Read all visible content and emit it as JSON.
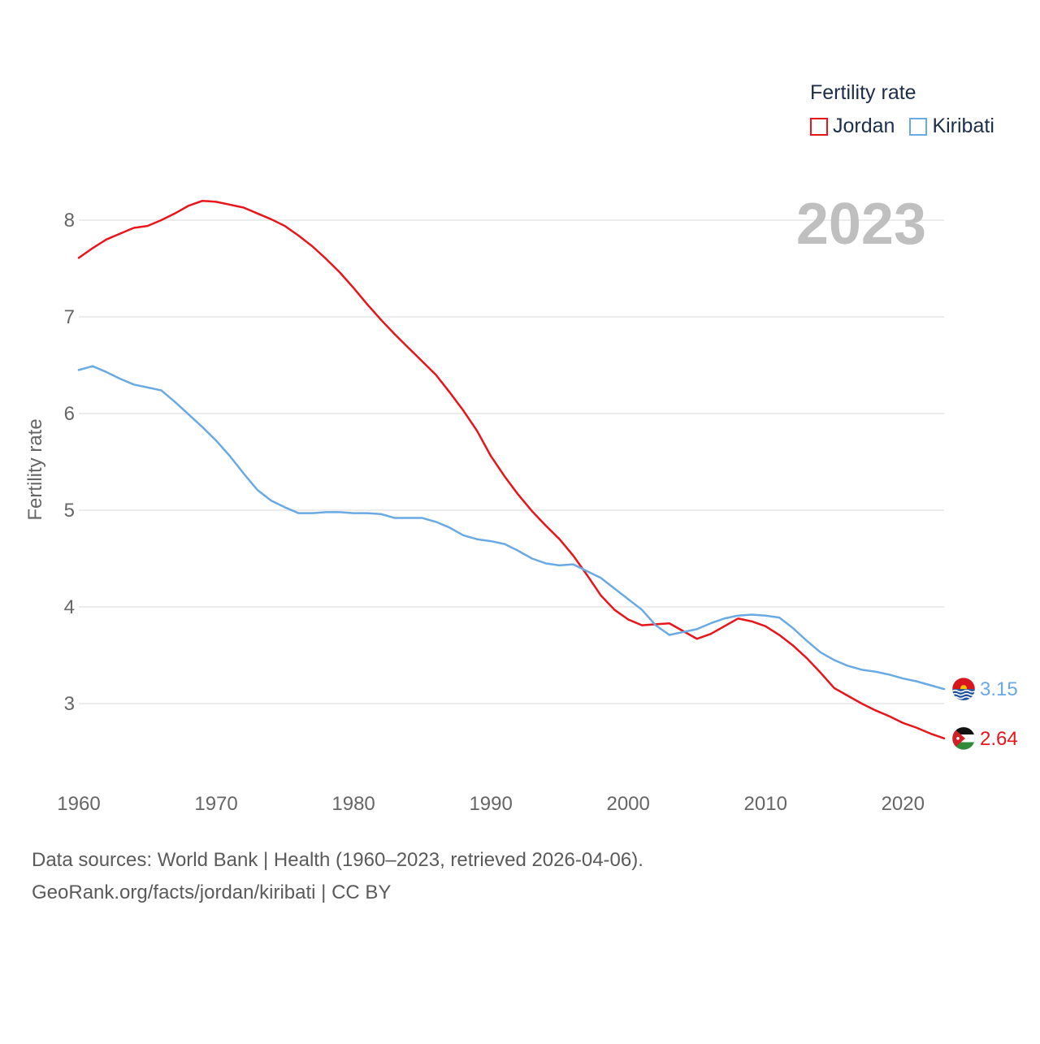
{
  "chart_data": {
    "type": "line",
    "title": "2023",
    "xlabel": "",
    "ylabel": "Fertility rate",
    "xlim": [
      1960,
      2023
    ],
    "ylim": [
      2.3,
      8.3
    ],
    "x_ticks": [
      1960,
      1970,
      1980,
      1990,
      2000,
      2010,
      2020
    ],
    "y_ticks": [
      3,
      4,
      5,
      6,
      7,
      8
    ],
    "grid": true,
    "legend": {
      "title": "Fertility rate",
      "placement": "top-right"
    },
    "x": [
      1960,
      1961,
      1962,
      1963,
      1964,
      1965,
      1966,
      1967,
      1968,
      1969,
      1970,
      1971,
      1972,
      1973,
      1974,
      1975,
      1976,
      1977,
      1978,
      1979,
      1980,
      1981,
      1982,
      1983,
      1984,
      1985,
      1986,
      1987,
      1988,
      1989,
      1990,
      1991,
      1992,
      1993,
      1994,
      1995,
      1996,
      1997,
      1998,
      1999,
      2000,
      2001,
      2002,
      2003,
      2004,
      2005,
      2006,
      2007,
      2008,
      2009,
      2010,
      2011,
      2012,
      2013,
      2014,
      2015,
      2016,
      2017,
      2018,
      2019,
      2020,
      2021,
      2022,
      2023
    ],
    "series": [
      {
        "name": "Jordan",
        "color": "#e8151b",
        "end_label": "2.64",
        "flag": "jordan-flag",
        "values": [
          7.61,
          7.71,
          7.8,
          7.86,
          7.92,
          7.94,
          8.0,
          8.07,
          8.15,
          8.2,
          8.19,
          8.16,
          8.13,
          8.07,
          8.01,
          7.94,
          7.84,
          7.73,
          7.6,
          7.46,
          7.3,
          7.13,
          6.97,
          6.82,
          6.68,
          6.54,
          6.4,
          6.22,
          6.03,
          5.82,
          5.56,
          5.35,
          5.16,
          4.99,
          4.84,
          4.7,
          4.53,
          4.33,
          4.12,
          3.97,
          3.87,
          3.81,
          3.82,
          3.83,
          3.75,
          3.67,
          3.72,
          3.8,
          3.88,
          3.85,
          3.8,
          3.71,
          3.6,
          3.47,
          3.32,
          3.16,
          3.08,
          3.0,
          2.93,
          2.87,
          2.8,
          2.75,
          2.69,
          2.64
        ]
      },
      {
        "name": "Kiribati",
        "color": "#6aaae4",
        "end_label": "3.15",
        "flag": "kiribati-flag",
        "values": [
          6.45,
          6.49,
          6.43,
          6.36,
          6.3,
          6.27,
          6.24,
          6.12,
          5.99,
          5.86,
          5.72,
          5.56,
          5.38,
          5.21,
          5.1,
          5.03,
          4.97,
          4.97,
          4.98,
          4.98,
          4.97,
          4.97,
          4.96,
          4.92,
          4.92,
          4.92,
          4.88,
          4.82,
          4.74,
          4.7,
          4.68,
          4.65,
          4.58,
          4.5,
          4.45,
          4.43,
          4.44,
          4.37,
          4.3,
          4.19,
          4.08,
          3.97,
          3.81,
          3.71,
          3.74,
          3.77,
          3.83,
          3.88,
          3.91,
          3.92,
          3.91,
          3.89,
          3.78,
          3.65,
          3.53,
          3.45,
          3.39,
          3.35,
          3.33,
          3.3,
          3.26,
          3.23,
          3.19,
          3.15
        ]
      }
    ]
  },
  "footer": {
    "sources": "Data sources: World Bank | Health (1960–2023, retrieved 2026-04-06).",
    "credit": "GeoRank.org/facts/jordan/kiribati | CC BY"
  }
}
